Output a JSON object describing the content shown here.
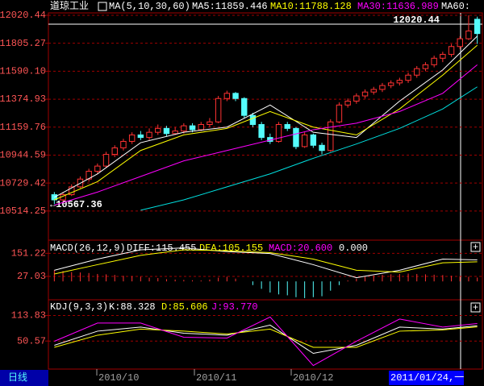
{
  "header": {
    "name": "道琼工业"
  },
  "chart_data": [
    {
      "type": "candlestick",
      "title": "MA(5,10,30,60)",
      "readouts": [
        {
          "text": "MA5:11859.446",
          "color": "#ffffff"
        },
        {
          "text": "MA10:11788.128",
          "color": "#ffff00"
        },
        {
          "text": "MA30:11636.989",
          "color": "#ff00ff"
        },
        {
          "text": "MA60:",
          "color": "#ffffff"
        }
      ],
      "annotations": [
        "12020.44",
        "←10567.36"
      ],
      "xlim": [
        -0.5,
        49.5
      ],
      "ylim": [
        10290,
        12039
      ],
      "yticks": [
        12020.44,
        11805.27,
        {
          "value": 11590.1,
          "label": "11590.10"
        },
        11374.93,
        11159.76,
        10944.59,
        10729.42,
        10514.25
      ],
      "grid": true,
      "up_color": "#ff3232",
      "down_color": "#54fcfc",
      "candles": [
        [
          10640,
          10660,
          10567.36,
          10600
        ],
        [
          10600,
          10660,
          10590,
          10640
        ],
        [
          10640,
          10720,
          10630,
          10700
        ],
        [
          10700,
          10780,
          10690,
          10760
        ],
        [
          10760,
          10840,
          10740,
          10820
        ],
        [
          10820,
          10880,
          10800,
          10860
        ],
        [
          10860,
          10970,
          10850,
          10950
        ],
        [
          10950,
          11020,
          10930,
          11000
        ],
        [
          11000,
          11070,
          10980,
          11050
        ],
        [
          11050,
          11120,
          11030,
          11100
        ],
        [
          11100,
          11130,
          11060,
          11080
        ],
        [
          11080,
          11150,
          11060,
          11120
        ],
        [
          11120,
          11180,
          11100,
          11150
        ],
        [
          11150,
          11170,
          11090,
          11110
        ],
        [
          11110,
          11160,
          11100,
          11130
        ],
        [
          11130,
          11190,
          11110,
          11170
        ],
        [
          11170,
          11190,
          11120,
          11140
        ],
        [
          11140,
          11200,
          11130,
          11180
        ],
        [
          11180,
          11230,
          11160,
          11200
        ],
        [
          11200,
          11400,
          11190,
          11380
        ],
        [
          11380,
          11440,
          11360,
          11420
        ],
        [
          11420,
          11430,
          11360,
          11380
        ],
        [
          11380,
          11390,
          11230,
          11250
        ],
        [
          11250,
          11270,
          11160,
          11180
        ],
        [
          11180,
          11200,
          11060,
          11080
        ],
        [
          11080,
          11110,
          11030,
          11050
        ],
        [
          11050,
          11200,
          11040,
          11180
        ],
        [
          11180,
          11200,
          11130,
          11150
        ],
        [
          11150,
          11160,
          10990,
          11010
        ],
        [
          11010,
          11120,
          11000,
          11100
        ],
        [
          11100,
          11110,
          11000,
          11020
        ],
        [
          11020,
          11040,
          10950,
          10980
        ],
        [
          10980,
          11220,
          10970,
          11200
        ],
        [
          11200,
          11350,
          11190,
          11330
        ],
        [
          11330,
          11380,
          11310,
          11360
        ],
        [
          11360,
          11420,
          11340,
          11400
        ],
        [
          11400,
          11450,
          11380,
          11430
        ],
        [
          11430,
          11470,
          11410,
          11450
        ],
        [
          11450,
          11500,
          11430,
          11480
        ],
        [
          11480,
          11520,
          11460,
          11500
        ],
        [
          11500,
          11540,
          11480,
          11520
        ],
        [
          11520,
          11580,
          11500,
          11560
        ],
        [
          11560,
          11630,
          11540,
          11610
        ],
        [
          11610,
          11660,
          11590,
          11640
        ],
        [
          11640,
          11710,
          11620,
          11690
        ],
        [
          11690,
          11740,
          11660,
          11720
        ],
        [
          11720,
          11800,
          11700,
          11780
        ],
        [
          11780,
          11860,
          11760,
          11840
        ],
        [
          11840,
          12020.44,
          11830,
          11900
        ],
        [
          11990,
          12010,
          11800,
          11880
        ]
      ],
      "x": [
        0,
        5,
        10,
        15,
        20,
        25,
        30,
        35,
        40,
        45,
        49
      ],
      "series": [
        {
          "color": "#ffffff",
          "values": [
            10620,
            10800,
            11040,
            11120,
            11160,
            11330,
            11120,
            11080,
            11360,
            11600,
            11860
          ]
        },
        {
          "color": "#ffff00",
          "values": [
            10600,
            10740,
            10980,
            11100,
            11150,
            11280,
            11160,
            11100,
            11300,
            11560,
            11790
          ]
        },
        {
          "color": "#ff00ff",
          "values": [
            10560,
            10660,
            10780,
            10900,
            10980,
            11060,
            11140,
            11190,
            11280,
            11420,
            11640
          ]
        },
        {
          "color": "#00e0e0",
          "values": [
            null,
            null,
            10520,
            10600,
            10700,
            10800,
            10920,
            11030,
            11150,
            11300,
            11470
          ]
        }
      ]
    },
    {
      "type": "macd",
      "title": "MACD(26,12,9)",
      "readouts": [
        {
          "text": "DIFF:115.455",
          "color": "#ffffff"
        },
        {
          "text": "DEA:105.155",
          "color": "#ffff00"
        },
        {
          "text": "MACD:20.600",
          "color": "#ff00ff"
        },
        {
          "text": "0.000",
          "color": "#ffffff"
        }
      ],
      "xlim": [
        -0.5,
        49.5
      ],
      "ylim": [
        -99,
        222
      ],
      "yticks": [
        151.22,
        27.03
      ],
      "grid": true,
      "up_color": "#ff3232",
      "down_color": "#54fcfc",
      "histogram": [
        60,
        55,
        50,
        48,
        45,
        40,
        38,
        35,
        30,
        28,
        25,
        20,
        18,
        12,
        10,
        8,
        6,
        5,
        10,
        20,
        25,
        15,
        0,
        -20,
        -40,
        -60,
        -70,
        -75,
        -85,
        -90,
        -85,
        -80,
        -50,
        -20,
        5,
        15,
        25,
        30,
        35,
        38,
        40,
        42,
        40,
        38,
        36,
        34,
        30,
        28,
        25,
        20.6
      ],
      "x": [
        0,
        5,
        10,
        15,
        20,
        25,
        30,
        35,
        40,
        45,
        49
      ],
      "series": [
        {
          "color": "#ffffff",
          "values": [
            60,
            120,
            170,
            180,
            160,
            150,
            90,
            20,
            60,
            120,
            115.455
          ]
        },
        {
          "color": "#ffff00",
          "values": [
            40,
            90,
            140,
            170,
            165,
            155,
            120,
            60,
            50,
            100,
            105.155
          ]
        }
      ]
    },
    {
      "type": "line",
      "title": "KDJ(9,3,3)",
      "readouts": [
        {
          "text": "K:88.328",
          "color": "#ffffff"
        },
        {
          "text": "D:85.606",
          "color": "#ffff00"
        },
        {
          "text": "J:93.770",
          "color": "#ff00ff"
        }
      ],
      "xlim": [
        -0.5,
        49.5
      ],
      "ylim": [
        -18.8,
        152.6
      ],
      "yticks": [
        113.83,
        50.57
      ],
      "grid": true,
      "x": [
        0,
        5,
        10,
        15,
        20,
        25,
        30,
        35,
        40,
        45,
        49
      ],
      "series": [
        {
          "color": "#ffffff",
          "values": [
            40,
            75,
            85,
            70,
            65,
            90,
            20,
            40,
            85,
            80,
            88.328
          ]
        },
        {
          "color": "#ffff00",
          "values": [
            35,
            65,
            80,
            75,
            68,
            80,
            35,
            35,
            75,
            78,
            85.606
          ]
        },
        {
          "color": "#ff00ff",
          "values": [
            50,
            95,
            95,
            60,
            58,
            110,
            -10,
            50,
            105,
            85,
            93.77
          ]
        }
      ]
    }
  ],
  "footer": {
    "period": "日线",
    "dates": [
      "2010/10",
      "2010/11",
      "2010/12"
    ],
    "cursor_date": "2011/01/24,一"
  }
}
